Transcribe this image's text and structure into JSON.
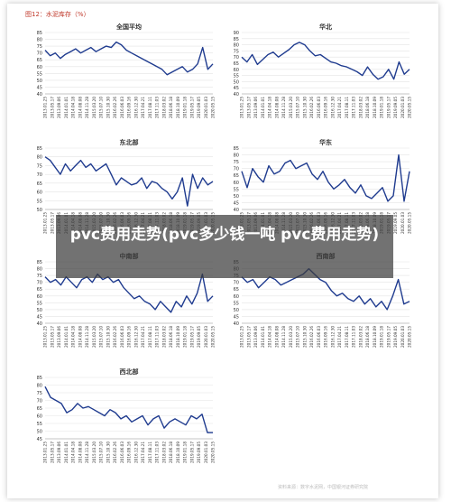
{
  "figure": {
    "title": "图12：水泥库存（%）",
    "footer": "资料来源：数字水泥网，中国银河证券研究院"
  },
  "overlay": {
    "headline": "pvc费用走势(pvc多少钱一吨 pvc费用走势)"
  },
  "colors": {
    "line": "#1f3b8f",
    "grid": "#e3e3e3",
    "axis": "#999999",
    "text": "#333333"
  },
  "chart_data": [
    {
      "type": "line",
      "title": "全国平均",
      "y_ticks": [
        40,
        45,
        50,
        55,
        60,
        65,
        70,
        75,
        80,
        85
      ],
      "ylim": [
        40,
        85
      ],
      "x_labels": [
        "2013.01.25",
        "2013.05.17",
        "2013.09.06",
        "2014.01.01",
        "2014.04.18",
        "2014.08.08",
        "2014.11.28",
        "2015.03.20",
        "2015.07.10",
        "2015.10.30",
        "2016.02.26",
        "2016.06.03",
        "2016.09.16",
        "2016.12.30",
        "2017.04.21",
        "2017.08.11",
        "2017.11.03",
        "2018.03.02",
        "2018.06.18",
        "2018.10.09",
        "2019.01.18",
        "2019.05.17",
        "2019.09.05",
        "2020.01.03",
        "2020.05.15"
      ],
      "values": [
        72,
        68,
        70,
        66,
        69,
        71,
        73,
        70,
        72,
        74,
        71,
        73,
        75,
        74,
        78,
        76,
        72,
        70,
        68,
        66,
        64,
        62,
        60,
        58,
        54,
        56,
        58,
        60,
        56,
        58,
        62,
        74,
        58,
        62
      ]
    },
    {
      "type": "line",
      "title": "华北",
      "y_ticks": [
        40,
        45,
        50,
        55,
        60,
        65,
        70,
        75,
        80,
        85,
        90
      ],
      "ylim": [
        40,
        90
      ],
      "x_labels": [
        "2013.01.25",
        "2013.05.17",
        "2013.09.06",
        "2014.01.01",
        "2014.04.18",
        "2014.08.08",
        "2014.11.28",
        "2015.03.20",
        "2015.07.10",
        "2015.10.30",
        "2016.02.26",
        "2016.06.03",
        "2016.09.16",
        "2016.12.30",
        "2017.04.21",
        "2017.08.11",
        "2017.11.03",
        "2018.03.02",
        "2018.06.18",
        "2018.10.09",
        "2019.01.18",
        "2019.05.17",
        "2019.09.05",
        "2020.01.03",
        "2020.05.15"
      ],
      "values": [
        70,
        66,
        72,
        64,
        68,
        72,
        74,
        70,
        73,
        76,
        80,
        82,
        80,
        75,
        71,
        72,
        69,
        66,
        65,
        63,
        62,
        60,
        58,
        55,
        62,
        56,
        52,
        54,
        60,
        52,
        66,
        56,
        60
      ]
    },
    {
      "type": "line",
      "title": "东北部",
      "y_ticks": [
        50,
        55,
        60,
        65,
        70,
        75,
        80,
        85
      ],
      "ylim": [
        50,
        85
      ],
      "x_labels": [
        "2013.01.25",
        "2013.05.17",
        "2013.09.06",
        "2014.01.01",
        "2014.04.18",
        "2014.08.08",
        "2014.11.28",
        "2015.03.20",
        "2015.07.10",
        "2015.10.30",
        "2016.02.26",
        "2016.06.03",
        "2016.09.16",
        "2016.12.30",
        "2017.04.21",
        "2017.08.11",
        "2017.11.03",
        "2018.03.02",
        "2018.06.18",
        "2018.10.09",
        "2019.01.18",
        "2019.05.17",
        "2019.09.05",
        "2020.01.03",
        "2020.05.15"
      ],
      "values": [
        80,
        78,
        74,
        70,
        76,
        72,
        75,
        78,
        74,
        76,
        72,
        74,
        76,
        70,
        64,
        68,
        66,
        64,
        65,
        68,
        62,
        66,
        65,
        62,
        60,
        56,
        60,
        68,
        52,
        70,
        62,
        68,
        64,
        66
      ]
    },
    {
      "type": "line",
      "title": "华东",
      "y_ticks": [
        40,
        45,
        50,
        55,
        60,
        65,
        70,
        75,
        80,
        85
      ],
      "ylim": [
        40,
        85
      ],
      "x_labels": [
        "2013.01.25",
        "2013.05.17",
        "2013.09.06",
        "2014.01.01",
        "2014.04.18",
        "2014.08.08",
        "2014.11.28",
        "2015.03.20",
        "2015.07.10",
        "2015.10.30",
        "2016.02.26",
        "2016.06.03",
        "2016.09.16",
        "2016.12.30",
        "2017.04.21",
        "2017.08.11",
        "2017.11.03",
        "2018.03.02",
        "2018.06.18",
        "2018.10.09",
        "2019.01.18",
        "2019.05.17",
        "2019.09.05",
        "2020.01.03",
        "2020.05.15"
      ],
      "values": [
        68,
        56,
        70,
        64,
        60,
        72,
        66,
        68,
        74,
        76,
        70,
        72,
        74,
        66,
        62,
        68,
        60,
        55,
        58,
        62,
        56,
        52,
        58,
        50,
        48,
        52,
        56,
        46,
        50,
        80,
        46,
        68
      ]
    },
    {
      "type": "line",
      "title": "中南部",
      "y_ticks": [
        40,
        45,
        50,
        55,
        60,
        65,
        70,
        75,
        80,
        85
      ],
      "ylim": [
        40,
        85
      ],
      "x_labels": [
        "2013.01.25",
        "2013.05.17",
        "2013.09.06",
        "2014.01.01",
        "2014.04.18",
        "2014.08.08",
        "2014.11.28",
        "2015.03.20",
        "2015.07.10",
        "2015.10.30",
        "2016.02.26",
        "2016.06.03",
        "2016.09.16",
        "2016.12.30",
        "2017.04.21",
        "2017.08.11",
        "2017.11.03",
        "2018.03.02",
        "2018.06.18",
        "2018.10.09",
        "2019.01.18",
        "2019.05.17",
        "2019.09.05",
        "2020.01.03",
        "2020.05.15"
      ],
      "values": [
        74,
        70,
        72,
        68,
        74,
        70,
        66,
        72,
        74,
        70,
        76,
        72,
        74,
        70,
        72,
        66,
        62,
        58,
        60,
        56,
        54,
        50,
        56,
        52,
        48,
        56,
        52,
        60,
        54,
        62,
        76,
        56,
        60
      ]
    },
    {
      "type": "line",
      "title": "西南部",
      "y_ticks": [
        40,
        45,
        50,
        55,
        60,
        65,
        70,
        75,
        80,
        85
      ],
      "ylim": [
        40,
        85
      ],
      "x_labels": [
        "2013.01.25",
        "2013.05.17",
        "2013.09.06",
        "2014.01.01",
        "2014.04.18",
        "2014.08.08",
        "2014.11.28",
        "2015.03.20",
        "2015.07.10",
        "2015.10.30",
        "2016.02.26",
        "2016.06.03",
        "2016.09.16",
        "2016.12.30",
        "2017.04.21",
        "2017.08.11",
        "2017.11.03",
        "2018.03.02",
        "2018.06.18",
        "2018.10.09",
        "2019.01.18",
        "2019.05.17",
        "2019.09.05",
        "2020.01.03",
        "2020.05.15"
      ],
      "values": [
        74,
        70,
        72,
        66,
        70,
        74,
        72,
        68,
        70,
        72,
        74,
        76,
        80,
        76,
        72,
        70,
        64,
        60,
        62,
        58,
        56,
        60,
        54,
        58,
        52,
        56,
        50,
        60,
        72,
        54,
        56
      ]
    },
    {
      "type": "line",
      "title": "西北部",
      "y_ticks": [
        45,
        50,
        55,
        60,
        65,
        70,
        75,
        80,
        85
      ],
      "ylim": [
        45,
        85
      ],
      "x_labels": [
        "2013.01.25",
        "2013.05.17",
        "2013.09.06",
        "2014.01.01",
        "2014.04.18",
        "2014.08.08",
        "2014.11.28",
        "2015.03.20",
        "2015.07.10",
        "2015.10.30",
        "2016.02.26",
        "2016.06.03",
        "2016.09.16",
        "2016.12.30",
        "2017.04.21",
        "2017.08.11",
        "2017.11.03",
        "2018.03.02",
        "2018.06.18",
        "2018.10.09",
        "2019.01.18",
        "2019.05.17",
        "2019.09.05",
        "2020.01.03",
        "2020.05.15"
      ],
      "values": [
        79,
        72,
        70,
        68,
        62,
        64,
        68,
        65,
        66,
        64,
        62,
        60,
        64,
        62,
        58,
        60,
        56,
        58,
        60,
        54,
        58,
        60,
        52,
        56,
        58,
        56,
        54,
        60,
        58,
        61,
        49,
        49
      ]
    }
  ]
}
